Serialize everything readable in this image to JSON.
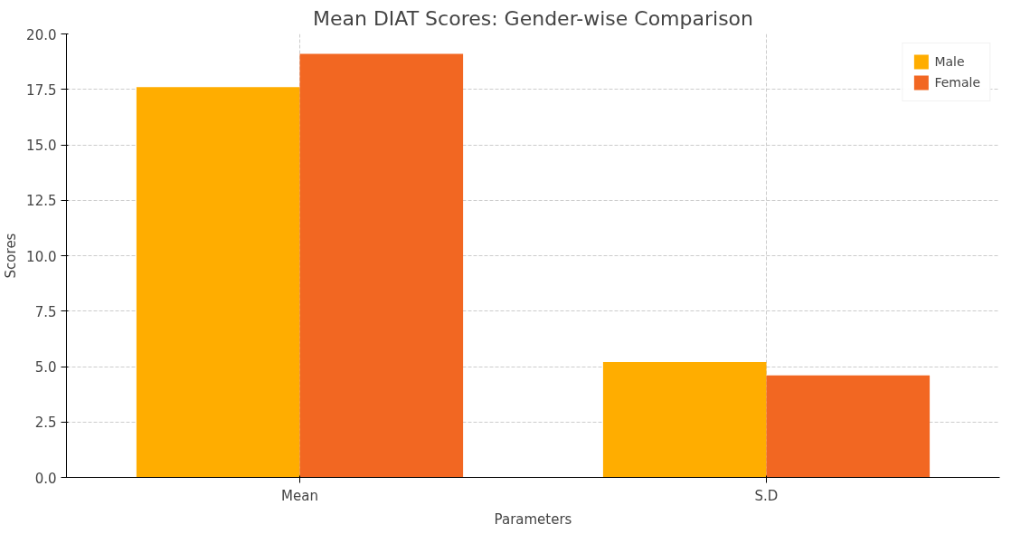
{
  "chart_data": {
    "type": "bar",
    "title": "Mean DIAT Scores: Gender-wise Comparison",
    "xlabel": "Parameters",
    "ylabel": "Scores",
    "categories": [
      "Mean",
      "S.D"
    ],
    "series": [
      {
        "name": "Male",
        "color": "#ffad00",
        "values": [
          17.6,
          5.2
        ]
      },
      {
        "name": "Female",
        "color": "#f26722",
        "values": [
          19.1,
          4.6
        ]
      }
    ],
    "ylim": [
      0,
      20
    ],
    "yticks": [
      {
        "value": 0,
        "label": "0.0"
      },
      2.5,
      {
        "value": 5,
        "label": "5.0"
      },
      7.5,
      {
        "value": 10,
        "label": "10.0"
      },
      12.5,
      {
        "value": 15,
        "label": "15.0"
      },
      17.5,
      {
        "value": 20,
        "label": "20.0"
      }
    ],
    "grid": true,
    "legend": "top right"
  }
}
